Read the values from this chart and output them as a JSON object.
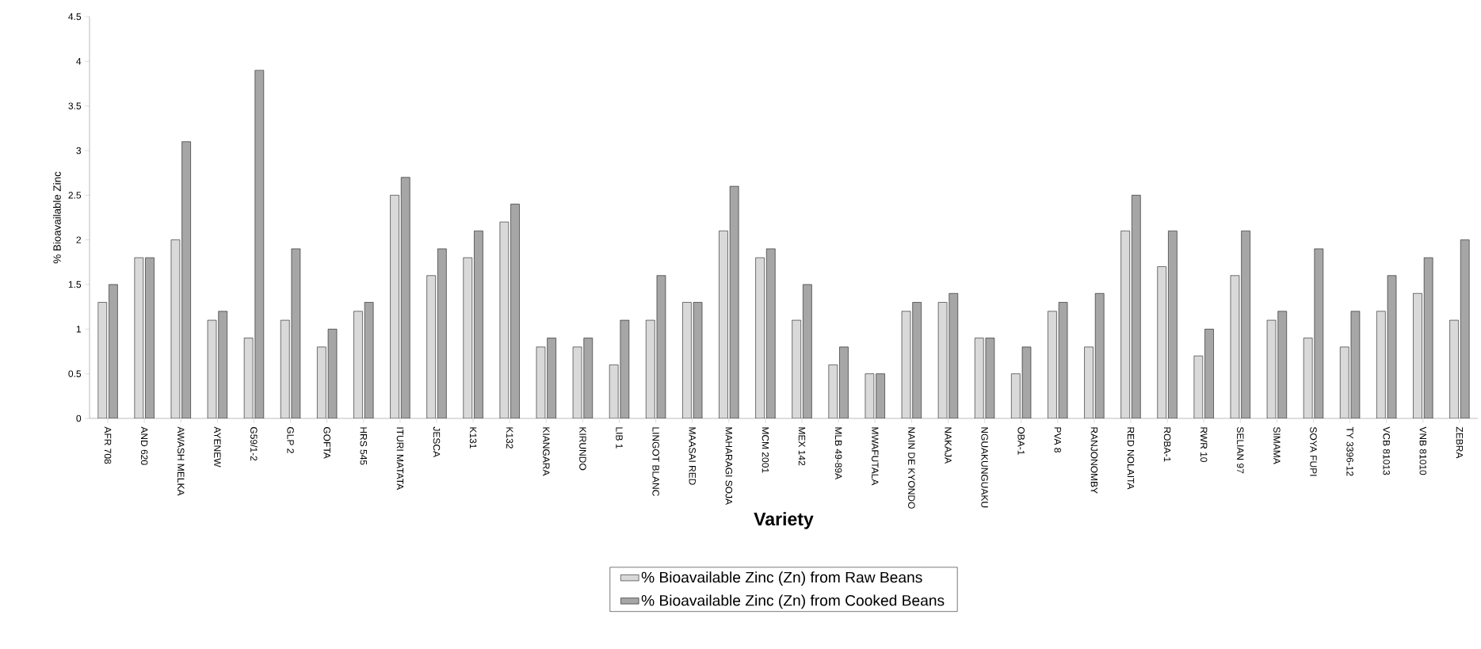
{
  "chart_data": {
    "type": "bar",
    "xlabel": "Variety",
    "ylabel": "% Bioavailable  Zinc",
    "categories": [
      "AFR 708",
      "AND 620",
      "AWASH MELKA",
      "AYENEW",
      "G59/1-2",
      "GLP 2",
      "GOFTA",
      "HRS 545",
      "ITURI MATATA",
      "JESCA",
      "K131",
      "K132",
      "KIANGARA",
      "KIRUNDO",
      "LIB 1",
      "LINGOT BLANC",
      "MAASAI RED",
      "MAHARAGI SOJA",
      "MCM 2001",
      "MEX 142",
      "MLB 49-89A",
      "MWAFUTALA",
      "NAIN DE KYONDO",
      "NAKAJA",
      "NGUAKUNGUAKU",
      "OBA-1",
      "PVA 8",
      "RANJONOMBY",
      "RED NOLAITA",
      "ROBA-1",
      "RWR 10",
      "SELIAN 97",
      "SIMAMA",
      "SOYA FUPI",
      "TY 3396-12",
      "VCB 81013",
      "VNB 81010",
      "ZEBRA"
    ],
    "series": [
      {
        "name": "% Bioavailable Zinc (Zn) from Raw Beans",
        "color": "#d9d9d9",
        "values": [
          1.3,
          1.8,
          2.0,
          1.1,
          0.9,
          1.1,
          0.8,
          1.2,
          2.5,
          1.6,
          1.8,
          2.2,
          0.8,
          0.8,
          0.6,
          1.1,
          1.3,
          2.1,
          1.8,
          1.1,
          0.6,
          0.5,
          1.2,
          1.3,
          0.9,
          0.5,
          1.2,
          0.8,
          2.1,
          1.7,
          0.7,
          1.6,
          1.1,
          0.9,
          0.8,
          1.2,
          1.4,
          1.1
        ]
      },
      {
        "name": "% Bioavailable Zinc (Zn) from Cooked Beans",
        "color": "#a6a6a6",
        "values": [
          1.5,
          1.8,
          3.1,
          1.2,
          3.9,
          1.9,
          1.0,
          1.3,
          2.7,
          1.9,
          2.1,
          2.4,
          0.9,
          0.9,
          1.1,
          1.6,
          1.3,
          2.6,
          1.9,
          1.5,
          0.8,
          0.5,
          1.3,
          1.4,
          0.9,
          0.8,
          1.3,
          1.4,
          2.5,
          2.1,
          1.0,
          2.1,
          1.2,
          1.9,
          1.2,
          1.6,
          1.8,
          2.0
        ]
      }
    ],
    "ylim": [
      0,
      4.5
    ],
    "yticks": [
      0,
      0.5,
      1,
      1.5,
      2,
      2.5,
      3,
      3.5,
      4,
      4.5
    ],
    "grid": false,
    "legend": "bottom"
  }
}
